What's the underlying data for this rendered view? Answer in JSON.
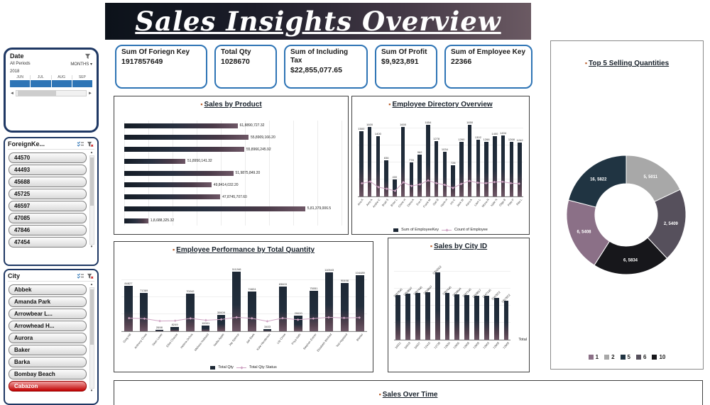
{
  "banner": {
    "title": "Sales Insights Overview"
  },
  "ui": {
    "bullet": "▪",
    "caret": "▾",
    "left_arrow": "◄",
    "right_arrow": "►",
    "up_arrow": "▴",
    "down_arrow": "▾"
  },
  "theme": {
    "accent_blue": "#2e75b6",
    "border_navy": "#1f3864",
    "bar_dark": "#1d2835",
    "bar_purple": "#6e5766",
    "line_pink": "#cfa3c3",
    "bullet_orange": "#b75b27"
  },
  "kpis": [
    {
      "label": "Sum Of Foriegn Key",
      "value": "1917857649"
    },
    {
      "label": "Total Qty",
      "value": "1028670"
    },
    {
      "label": "Sum of Including Tax",
      "value": "$22,855,077.65"
    },
    {
      "label": "Sum Of Profit",
      "value": "$9,923,891"
    },
    {
      "label": "Sum of Employee Key",
      "value": "22366"
    }
  ],
  "slicers": {
    "date": {
      "title": "Date",
      "scope_label": "All Periods",
      "level_label": "MONTHS",
      "year": "2018",
      "months": [
        "JUN",
        "JUL",
        "AUG",
        "SEP"
      ]
    },
    "foreign_key": {
      "title": "ForeignKe...",
      "items": [
        "44570",
        "44493",
        "45688",
        "45725",
        "46597",
        "47085",
        "47846",
        "47454"
      ]
    },
    "city": {
      "title": "City",
      "items": [
        "Abbek",
        "Amanda Park",
        "Arrowbear L...",
        "Arrowhead H...",
        "Aurora",
        "Baker",
        "Barka",
        "Bombay Beach",
        "Cabazon"
      ]
    }
  },
  "chart_data": [
    {
      "id": "sales_by_product",
      "type": "bar",
      "orientation": "horizontal",
      "title": "Sales by Product",
      "bars": [
        {
          "label": "61,8890,727.32",
          "length_pct": 52
        },
        {
          "label": "55,8909,166.20",
          "length_pct": 57
        },
        {
          "label": "55,8966,245.92",
          "length_pct": 55
        },
        {
          "label": "51,8950,141.32",
          "length_pct": 28
        },
        {
          "label": "51,9875,849.20",
          "length_pct": 50
        },
        {
          "label": "49,8414,032.20",
          "length_pct": 40
        },
        {
          "label": "47,8745,707.60",
          "length_pct": 44
        },
        {
          "label": "5,81,379,006.5",
          "length_pct": 83
        },
        {
          "label": "1,8,688,325.32",
          "length_pct": 11
        }
      ]
    },
    {
      "id": "employee_directory",
      "type": "bar",
      "title": "Employee Directory Overview",
      "categories": [
        "Aria K",
        "Amy A",
        "Andre C",
        "Brad S",
        "Brian L",
        "Chloe H",
        "Dana A",
        "Eva K",
        "Frank M",
        "Gail B",
        "Hank H",
        "Iris C",
        "Jack W",
        "Kara A",
        "Liam L",
        "Mona R",
        "Nate N",
        "Olga B",
        "Pete P",
        "Rita L"
      ],
      "values": [
        1500,
        1600,
        1400,
        836,
        400,
        1600,
        778,
        962,
        1654,
        1278,
        1034,
        728,
        1260,
        1650,
        1302,
        1266,
        1400,
        1404,
        1268,
        1242
      ],
      "line": [
        95,
        110,
        62,
        48,
        30,
        104,
        72,
        86,
        120,
        96,
        82,
        55,
        90,
        116,
        100,
        96,
        106,
        108,
        96,
        92
      ],
      "series_labels": [
        "Sum of EmployeeKey",
        "Count of Employee"
      ]
    },
    {
      "id": "employee_performance_by_total_quantity",
      "type": "bar",
      "title": "Employee Performance by Total Quantity",
      "categories": [
        "Greg Hill",
        "Anthony Chow",
        "Sean Laree",
        "Elliot Chavas",
        "Helena Ochoa",
        "Melissa Hubbard",
        "Nadia Apple",
        "Jay Spence",
        "Jae Baek",
        "Kate Henderson",
        "Lily Chow",
        "Priya Nath",
        "Stephan Entner",
        "Elizabeth Winfred",
        "Ted Hayward",
        "Blanko"
      ],
      "values": [
        84827,
        71369,
        2698,
        8249,
        70242,
        10001,
        30609,
        111246,
        74824,
        3403,
        83603,
        29020,
        75051,
        110543,
        90498,
        104489
      ],
      "value_labels": [
        "84827",
        "71369",
        "2698",
        "8249",
        "70242",
        "10001",
        "30609",
        "111246",
        "74824",
        "3403",
        "83603",
        "29020",
        "75051",
        "110543",
        "90498",
        "104489"
      ],
      "line": [
        420,
        400,
        310,
        320,
        410,
        340,
        370,
        450,
        415,
        300,
        420,
        360,
        405,
        450,
        430,
        440
      ],
      "series_labels": [
        "Total Qty",
        "Total Qty Status"
      ]
    },
    {
      "id": "sales_by_city_id",
      "type": "bar",
      "title": "Sales by City ID",
      "categories": [
        "34011",
        "34019",
        "34027",
        "72410",
        "72739",
        "72934",
        "72956",
        "72958",
        "72959",
        "72963",
        "72968",
        "72969"
      ],
      "values": [
        2187645,
        2259847,
        2287445,
        2339847,
        3300502,
        2287445,
        2239844,
        2187145,
        2159817,
        2147145,
        2047872,
        1917872
      ],
      "value_labels": [
        "2187645",
        "2259847",
        "2287445",
        "2339847",
        "3300502",
        "2287445",
        "2239844",
        "2187145",
        "2159817",
        "2147145",
        "2047872",
        "1917872"
      ],
      "total_label": "Total"
    },
    {
      "id": "top_5_selling_quantities",
      "type": "pie",
      "donut": true,
      "title": "Top 5 Selling Quantities",
      "slices": [
        {
          "name": "2",
          "value": 5011,
          "label": "5, 5011",
          "color": "#a8a8a8",
          "pct": 18
        },
        {
          "name": "6",
          "value": 5409,
          "label": "2, 5409",
          "color": "#56505c",
          "pct": 20
        },
        {
          "name": "10",
          "value": 5834,
          "label": "6, 5834",
          "color": "#17171b",
          "pct": 21
        },
        {
          "name": "1",
          "value": 5408,
          "label": "6, 5408",
          "color": "#8b7087",
          "pct": 20
        },
        {
          "name": "5",
          "value": 5822,
          "label": "16, 5822",
          "color": "#203442",
          "pct": 21
        }
      ],
      "legend": [
        {
          "name": "1",
          "color": "#8b7087"
        },
        {
          "name": "2",
          "color": "#a8a8a8"
        },
        {
          "name": "5",
          "color": "#203442"
        },
        {
          "name": "6",
          "color": "#56505c"
        },
        {
          "name": "10",
          "color": "#17171b"
        }
      ],
      "legend_position": "bottom"
    },
    {
      "id": "sales_over_time",
      "type": "line",
      "title": "Sales Over Time"
    }
  ]
}
